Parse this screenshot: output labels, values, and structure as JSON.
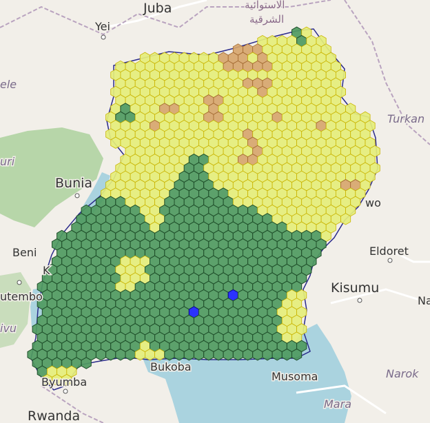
{
  "map": {
    "place_labels": [
      {
        "id": "juba",
        "text": "Juba"
      },
      {
        "id": "yei",
        "text": "Yei"
      },
      {
        "id": "arabic1",
        "text": "الاستوائية"
      },
      {
        "id": "arabic2",
        "text": "الشرقية"
      },
      {
        "id": "ele",
        "text": "ele"
      },
      {
        "id": "uri",
        "text": "uri"
      },
      {
        "id": "bunia",
        "text": "Bunia"
      },
      {
        "id": "beni",
        "text": "Beni"
      },
      {
        "id": "k",
        "text": "K"
      },
      {
        "id": "utembo",
        "text": "utembo"
      },
      {
        "id": "ivu",
        "text": "ivu"
      },
      {
        "id": "bukoba",
        "text": "Bukoba"
      },
      {
        "id": "byumba",
        "text": "Byumba"
      },
      {
        "id": "rwanda",
        "text": "Rwanda"
      },
      {
        "id": "turkana",
        "text": "Turkan"
      },
      {
        "id": "wo",
        "text": "wo"
      },
      {
        "id": "eldoret",
        "text": "Eldoret"
      },
      {
        "id": "kisumu",
        "text": "Kisumu"
      },
      {
        "id": "na",
        "text": "Na"
      },
      {
        "id": "musoma",
        "text": "Musoma"
      },
      {
        "id": "narok",
        "text": "Narok"
      },
      {
        "id": "mara",
        "text": "Mara"
      }
    ],
    "colors": {
      "yellow_fill": "#e5ee7a",
      "yellow_stroke": "#c9b400",
      "green_fill": "#4f9a5f",
      "green_stroke": "#1f4e2a",
      "orange_fill": "#d6a46a",
      "orange_stroke": "#a0662e",
      "blue_fill": "#1a22ff",
      "border": "#2a2a8a",
      "lake": "#aad3df",
      "forest": "#add19e",
      "land": "#f2efe9"
    },
    "layers": [
      {
        "name": "hex-grid-yellow",
        "category": "low"
      },
      {
        "name": "hex-grid-green",
        "category": "high"
      },
      {
        "name": "hex-grid-orange",
        "category": "medium"
      },
      {
        "name": "hex-grid-blue",
        "category": "highest"
      }
    ]
  }
}
